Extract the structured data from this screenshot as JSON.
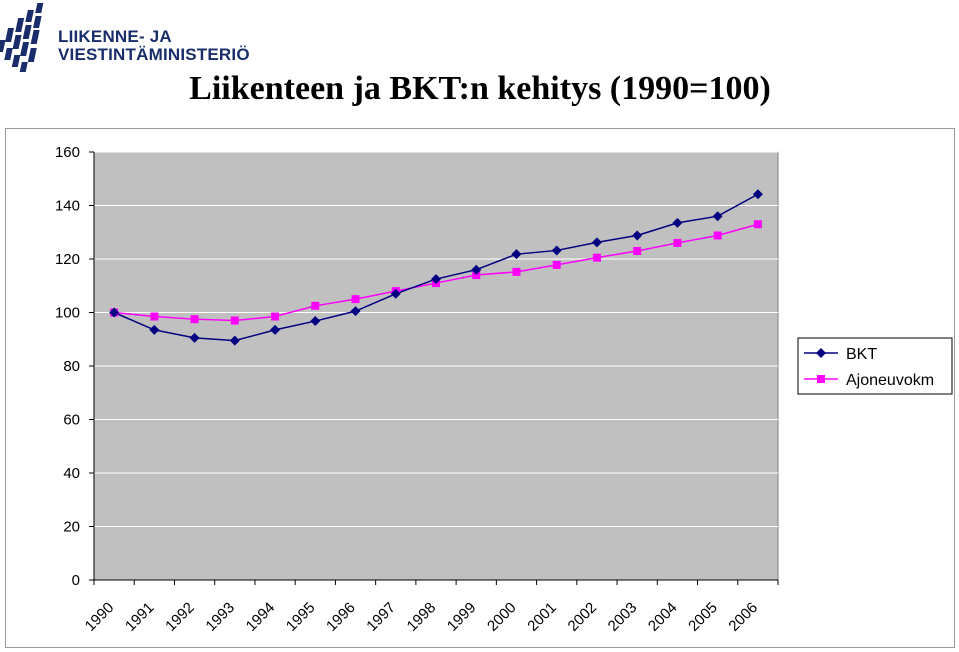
{
  "header": {
    "logo_line1": "LIIKENNE- JA",
    "logo_line2": "VIESTINTÄMINISTERIÖ",
    "logo_color": "#1a2d6b"
  },
  "chart_data": {
    "type": "line",
    "title": "Liikenteen ja BKT:n kehitys (1990=100)",
    "categories": [
      "1990",
      "1991",
      "1992",
      "1993",
      "1994",
      "1995",
      "1996",
      "1997",
      "1998",
      "1999",
      "2000",
      "2001",
      "2002",
      "2003",
      "2004",
      "2005",
      "2006"
    ],
    "series": [
      {
        "name": "BKT",
        "color": "#000080",
        "marker": "diamond",
        "values": [
          100,
          93.5,
          90.5,
          89.5,
          93.5,
          96.8,
          100.5,
          107,
          112.5,
          116,
          121.8,
          123.2,
          126.2,
          128.8,
          133.5,
          136,
          144.2
        ]
      },
      {
        "name": "Ajoneuvokm",
        "color": "#ff00ff",
        "marker": "square",
        "values": [
          100,
          98.5,
          97.5,
          97,
          98.5,
          102.5,
          105,
          108,
          111,
          114,
          115.2,
          117.8,
          120.5,
          123,
          126,
          128.8,
          133
        ]
      }
    ],
    "ylim": [
      0,
      160
    ],
    "yticks": [
      "0",
      "20",
      "40",
      "60",
      "80",
      "100",
      "120",
      "140",
      "160"
    ],
    "grid": true,
    "plot_background": "#c0c0c0",
    "legend_position": "right"
  }
}
